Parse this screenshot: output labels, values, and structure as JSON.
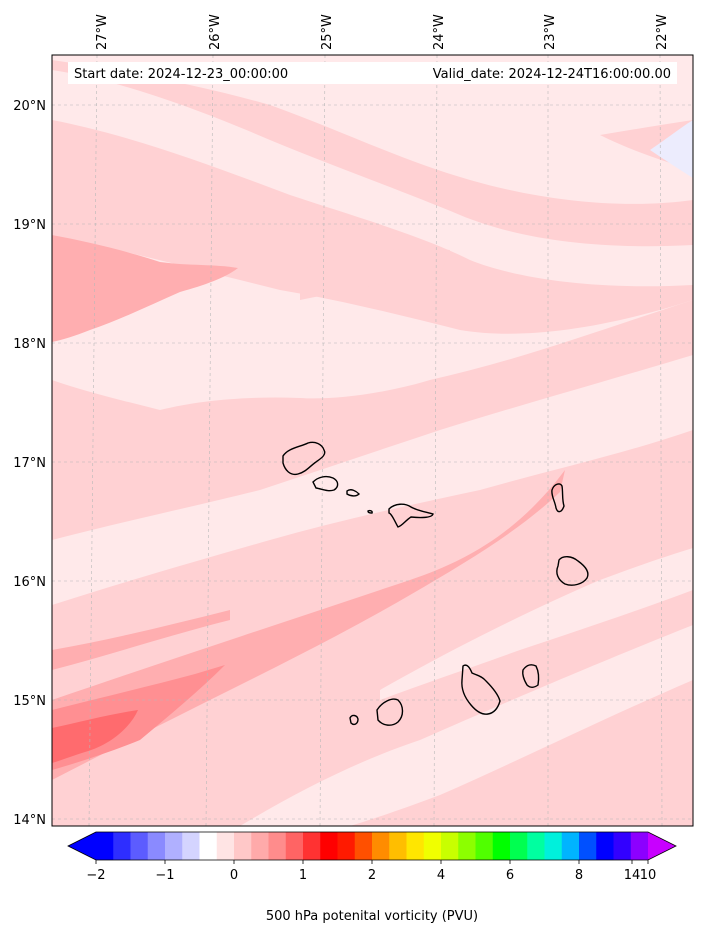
{
  "map": {
    "start_label": "Start date: 2024-12-23_00:00:00",
    "valid_label": "Valid_date: 2024-12-24T16:00:00.00",
    "lon_ticks": [
      "27°W",
      "26°W",
      "25°W",
      "24°W",
      "23°W",
      "22°W"
    ],
    "lat_ticks": [
      "20°N",
      "19°N",
      "18°N",
      "17°N",
      "16°N",
      "15°N",
      "14°N"
    ],
    "islands": [
      "santo-antao",
      "sao-vicente",
      "santa-luzia",
      "branco",
      "sao-nicolau",
      "sal",
      "boa-vista",
      "fogo",
      "brava",
      "santiago",
      "maio"
    ],
    "field_colors": {
      "lightest": "#ffe9ea",
      "light": "#ffd1d3",
      "mid": "#ffaeb0",
      "strong": "#ff8f92",
      "peak": "#ff6b6e",
      "negative": "#ececfd"
    }
  },
  "colorbar": {
    "label": "500 hPa potenital vorticity (PVU)",
    "ticks": [
      "−2",
      "−1",
      "0",
      "1",
      "2",
      "4",
      "6",
      "8",
      "10",
      "14"
    ],
    "colors": [
      "#0000ff",
      "#2e2eff",
      "#5c5cff",
      "#8a8aff",
      "#b0b0ff",
      "#d4d4ff",
      "#ffffff",
      "#ffe4e4",
      "#ffc8c8",
      "#ffaaaa",
      "#ff8c8c",
      "#ff6464",
      "#ff3232",
      "#ff0000",
      "#ff1a00",
      "#ff5000",
      "#ff8c00",
      "#ffbe00",
      "#ffe600",
      "#f0ff00",
      "#c8ff00",
      "#8cff00",
      "#50ff00",
      "#00ff00",
      "#00ff50",
      "#00ffa0",
      "#00f0dc",
      "#00b4ff",
      "#0050ff",
      "#0000ff",
      "#3200ff",
      "#8c00ff"
    ],
    "extend_min_color": "#0000ff",
    "extend_max_color": "#c800ff"
  }
}
